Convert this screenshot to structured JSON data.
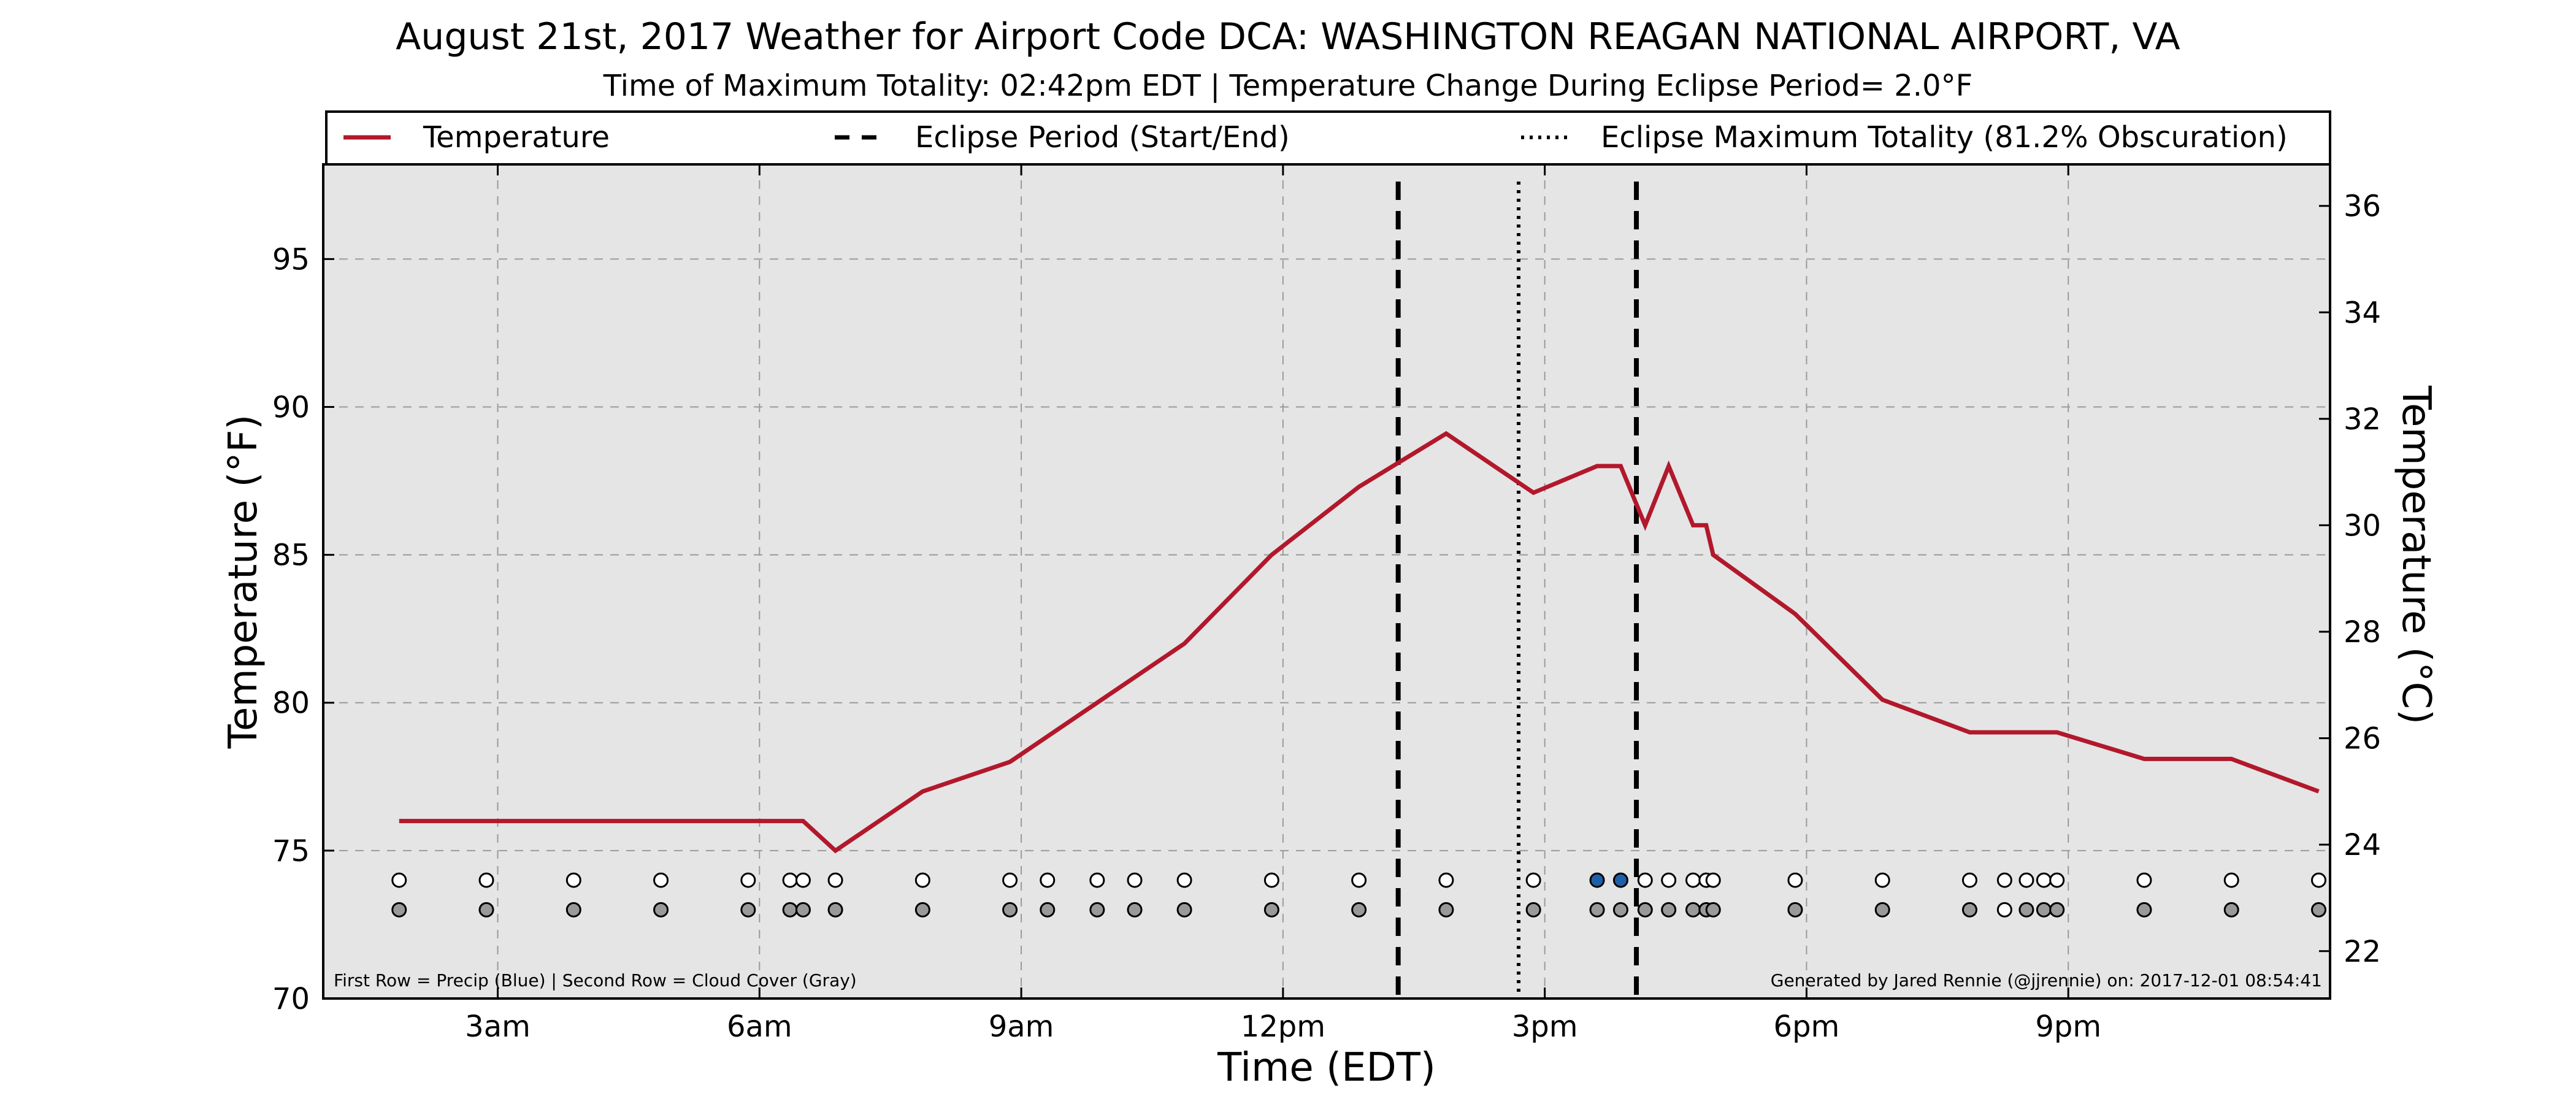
{
  "chart_data": {
    "type": "line",
    "title": "August 21st, 2017 Weather for Airport Code DCA: WASHINGTON REAGAN NATIONAL AIRPORT, VA",
    "subtitle": "Time of Maximum Totality: 02:42pm EDT | Temperature Change During Eclipse Period= 2.0°F",
    "xlabel": "Time (EDT)",
    "ylabel": "Temperature (°F)",
    "ylabel_right": "Temperature (°C)",
    "xlim": [
      1.0,
      24.0
    ],
    "ylim": [
      70,
      98.2
    ],
    "ylim_right": [
      21.11,
      36.78
    ],
    "grid": true,
    "legend_position": "top",
    "x_ticks": [
      {
        "value": 3,
        "label": "3am"
      },
      {
        "value": 6,
        "label": "6am"
      },
      {
        "value": 9,
        "label": "9am"
      },
      {
        "value": 12,
        "label": "12pm"
      },
      {
        "value": 15,
        "label": "3pm"
      },
      {
        "value": 18,
        "label": "6pm"
      },
      {
        "value": 21,
        "label": "9pm"
      }
    ],
    "y_ticks": [
      70,
      75,
      80,
      85,
      90,
      95
    ],
    "y_ticks_right": [
      22,
      24,
      26,
      28,
      30,
      32,
      34,
      36
    ],
    "legend": [
      {
        "label": "Temperature",
        "style": "solid"
      },
      {
        "label": "Eclipse Period (Start/End)",
        "style": "dashed"
      },
      {
        "label": "Eclipse Maximum Totality (81.2% Obscuration)",
        "style": "dotted"
      }
    ],
    "series": [
      {
        "name": "Temperature",
        "color": "#b2182b",
        "x": [
          1.87,
          2.87,
          3.87,
          4.87,
          5.87,
          6.5,
          6.87,
          7.87,
          8.87,
          9.87,
          10.87,
          11.87,
          12.87,
          13.87,
          14.87,
          15.6,
          15.87,
          16.15,
          16.42,
          16.7,
          16.85,
          16.93,
          17.87,
          18.87,
          19.87,
          20.87,
          21.87,
          22.87,
          23.87
        ],
        "y": [
          76,
          76,
          76,
          76,
          76,
          76,
          75,
          77,
          78,
          80,
          82,
          85,
          87.3,
          89.1,
          87.1,
          88,
          88,
          86,
          88,
          86,
          86,
          85,
          83,
          80.1,
          79,
          79,
          78.1,
          78.1,
          77
        ]
      }
    ],
    "eclipse_lines": {
      "start": 13.32,
      "max": 14.7,
      "end": 16.05
    },
    "precip_row": {
      "y": 74,
      "x": [
        1.87,
        2.87,
        3.87,
        4.87,
        5.87,
        6.35,
        6.5,
        6.87,
        7.87,
        8.87,
        9.3,
        9.87,
        10.3,
        10.87,
        11.87,
        12.87,
        13.87,
        14.87,
        15.6,
        15.87,
        16.15,
        16.42,
        16.7,
        16.85,
        16.93,
        17.87,
        18.87,
        19.87,
        20.27,
        20.52,
        20.72,
        20.87,
        21.87,
        22.87,
        23.87
      ],
      "fill": [
        "w",
        "w",
        "w",
        "w",
        "w",
        "w",
        "w",
        "w",
        "w",
        "w",
        "w",
        "w",
        "w",
        "w",
        "w",
        "w",
        "w",
        "w",
        "b",
        "b",
        "w",
        "w",
        "w",
        "w",
        "w",
        "w",
        "w",
        "w",
        "w",
        "w",
        "w",
        "w",
        "w",
        "w",
        "w"
      ]
    },
    "cloud_row": {
      "y": 73,
      "x": [
        1.87,
        2.87,
        3.87,
        4.87,
        5.87,
        6.35,
        6.5,
        6.87,
        7.87,
        8.87,
        9.3,
        9.87,
        10.3,
        10.87,
        11.87,
        12.87,
        13.87,
        14.87,
        15.6,
        15.87,
        16.15,
        16.42,
        16.7,
        16.85,
        16.93,
        17.87,
        18.87,
        19.87,
        20.27,
        20.52,
        20.72,
        20.87,
        21.87,
        22.87,
        23.87
      ],
      "fill": [
        "g",
        "g",
        "g",
        "g",
        "g",
        "g",
        "g",
        "g",
        "g",
        "g",
        "g",
        "g",
        "g",
        "g",
        "g",
        "g",
        "g",
        "g",
        "g",
        "g",
        "g",
        "g",
        "g",
        "g",
        "g",
        "g",
        "g",
        "g",
        "w",
        "g",
        "g",
        "g",
        "g",
        "g",
        "g"
      ]
    },
    "colors": {
      "temperature": "#b2182b",
      "plot_background": "#e5e5e5",
      "precip": "#1f5fa8",
      "cloud": "#999999",
      "empty": "#ffffff"
    },
    "notes": {
      "left": "First Row = Precip (Blue) | Second Row = Cloud Cover (Gray)",
      "right": "Generated by Jared Rennie (@jjrennie) on: 2017-12-01 08:54:41"
    }
  }
}
